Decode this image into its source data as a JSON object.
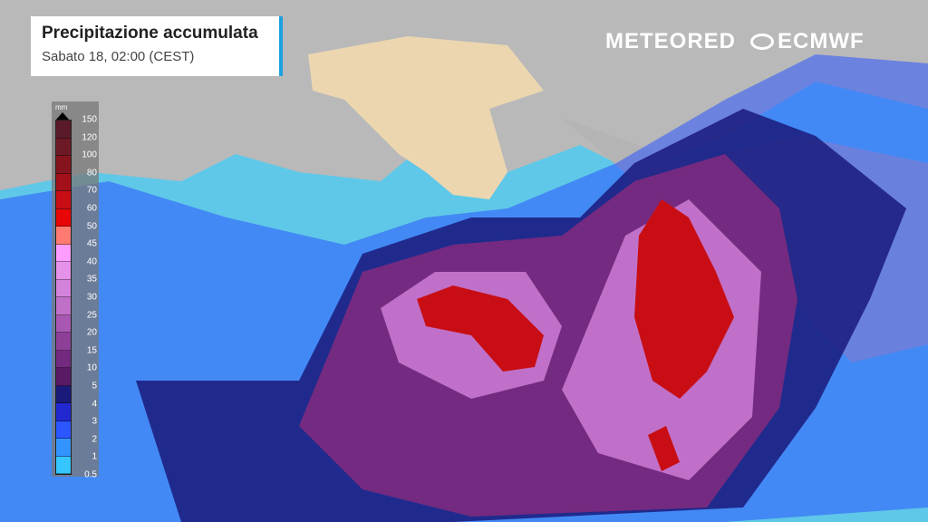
{
  "header": {
    "title": "Precipitazione accumulata",
    "subtitle": "Sabato 18, 02:00 (CEST)"
  },
  "legend": {
    "unit": "mm",
    "labels": [
      "150",
      "120",
      "100",
      "80",
      "70",
      "60",
      "50",
      "45",
      "40",
      "35",
      "30",
      "25",
      "20",
      "15",
      "10",
      "5",
      "4",
      "3",
      "2",
      "1",
      "0.5"
    ],
    "colors": [
      "#5a1a2a",
      "#6e1a26",
      "#86141e",
      "#a4101a",
      "#c80e14",
      "#e80606",
      "#ff7b72",
      "#ff9cff",
      "#e692ea",
      "#d482dc",
      "#c070c8",
      "#a858b2",
      "#8e4098",
      "#742a80",
      "#5a1a66",
      "#1a1a7a",
      "#2228d0",
      "#2c56ff",
      "#3494ff",
      "#36c6ff"
    ]
  },
  "logos": {
    "meteored": "METEORED",
    "ecmwf": "ECMWF"
  },
  "colors": {
    "sea": "#5fc8e8",
    "land": "#b8b8b8",
    "italy": "#ecd6b0",
    "accent": "#1ea0e0"
  }
}
